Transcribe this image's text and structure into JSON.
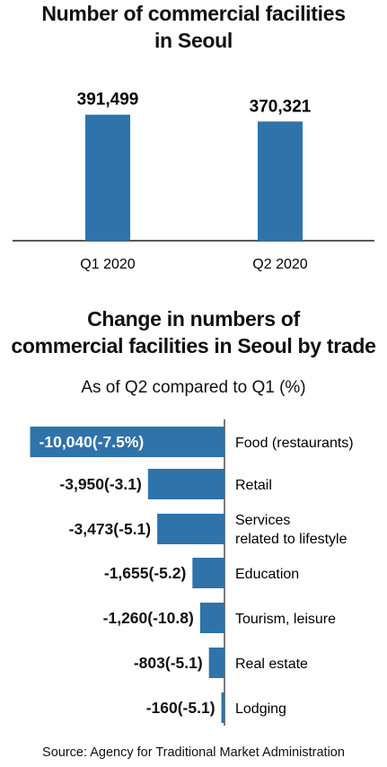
{
  "chart_data": [
    {
      "type": "bar",
      "title": "Number of commercial facilities in Seoul",
      "categories": [
        "Q1 2020",
        "Q2 2020"
      ],
      "values": [
        391499,
        370321
      ],
      "value_labels": [
        "391,499",
        "370,321"
      ],
      "ylim": [
        0,
        480000
      ],
      "bar_color": "#2e73aa",
      "grid": false
    },
    {
      "type": "bar",
      "orientation": "horizontal",
      "title": "Change in numbers of commercial facilities in Seoul by trade",
      "subtitle": "As of Q2 compared to Q1 (%)",
      "bar_color": "#2e73aa",
      "grid": false,
      "xlim": [
        -10900,
        0
      ],
      "items": [
        {
          "category": "Food (restaurants)",
          "label_lines": [
            "Food (restaurants)"
          ],
          "value": -10040,
          "percent": -7.5,
          "value_label": "-10,040(-7.5%)"
        },
        {
          "category": "Retail",
          "label_lines": [
            "Retail"
          ],
          "value": -3950,
          "percent": -3.1,
          "value_label": "-3,950(-3.1)"
        },
        {
          "category": "Services related to lifestyle",
          "label_lines": [
            "Services",
            "related to lifestyle"
          ],
          "value": -3473,
          "percent": -5.1,
          "value_label": "-3,473(-5.1)"
        },
        {
          "category": "Education",
          "label_lines": [
            "Education"
          ],
          "value": -1655,
          "percent": -5.2,
          "value_label": "-1,655(-5.2)"
        },
        {
          "category": "Tourism, leisure",
          "label_lines": [
            "Tourism, leisure"
          ],
          "value": -1260,
          "percent": -10.8,
          "value_label": "-1,260(-10.8)"
        },
        {
          "category": "Real estate",
          "label_lines": [
            "Real estate"
          ],
          "value": -803,
          "percent": -5.1,
          "value_label": "-803(-5.1)"
        },
        {
          "category": "Lodging",
          "label_lines": [
            "Lodging"
          ],
          "value": -160,
          "percent": -5.1,
          "value_label": "-160(-5.1)"
        }
      ]
    }
  ],
  "source": "Source: Agency for Traditional Market Administration"
}
